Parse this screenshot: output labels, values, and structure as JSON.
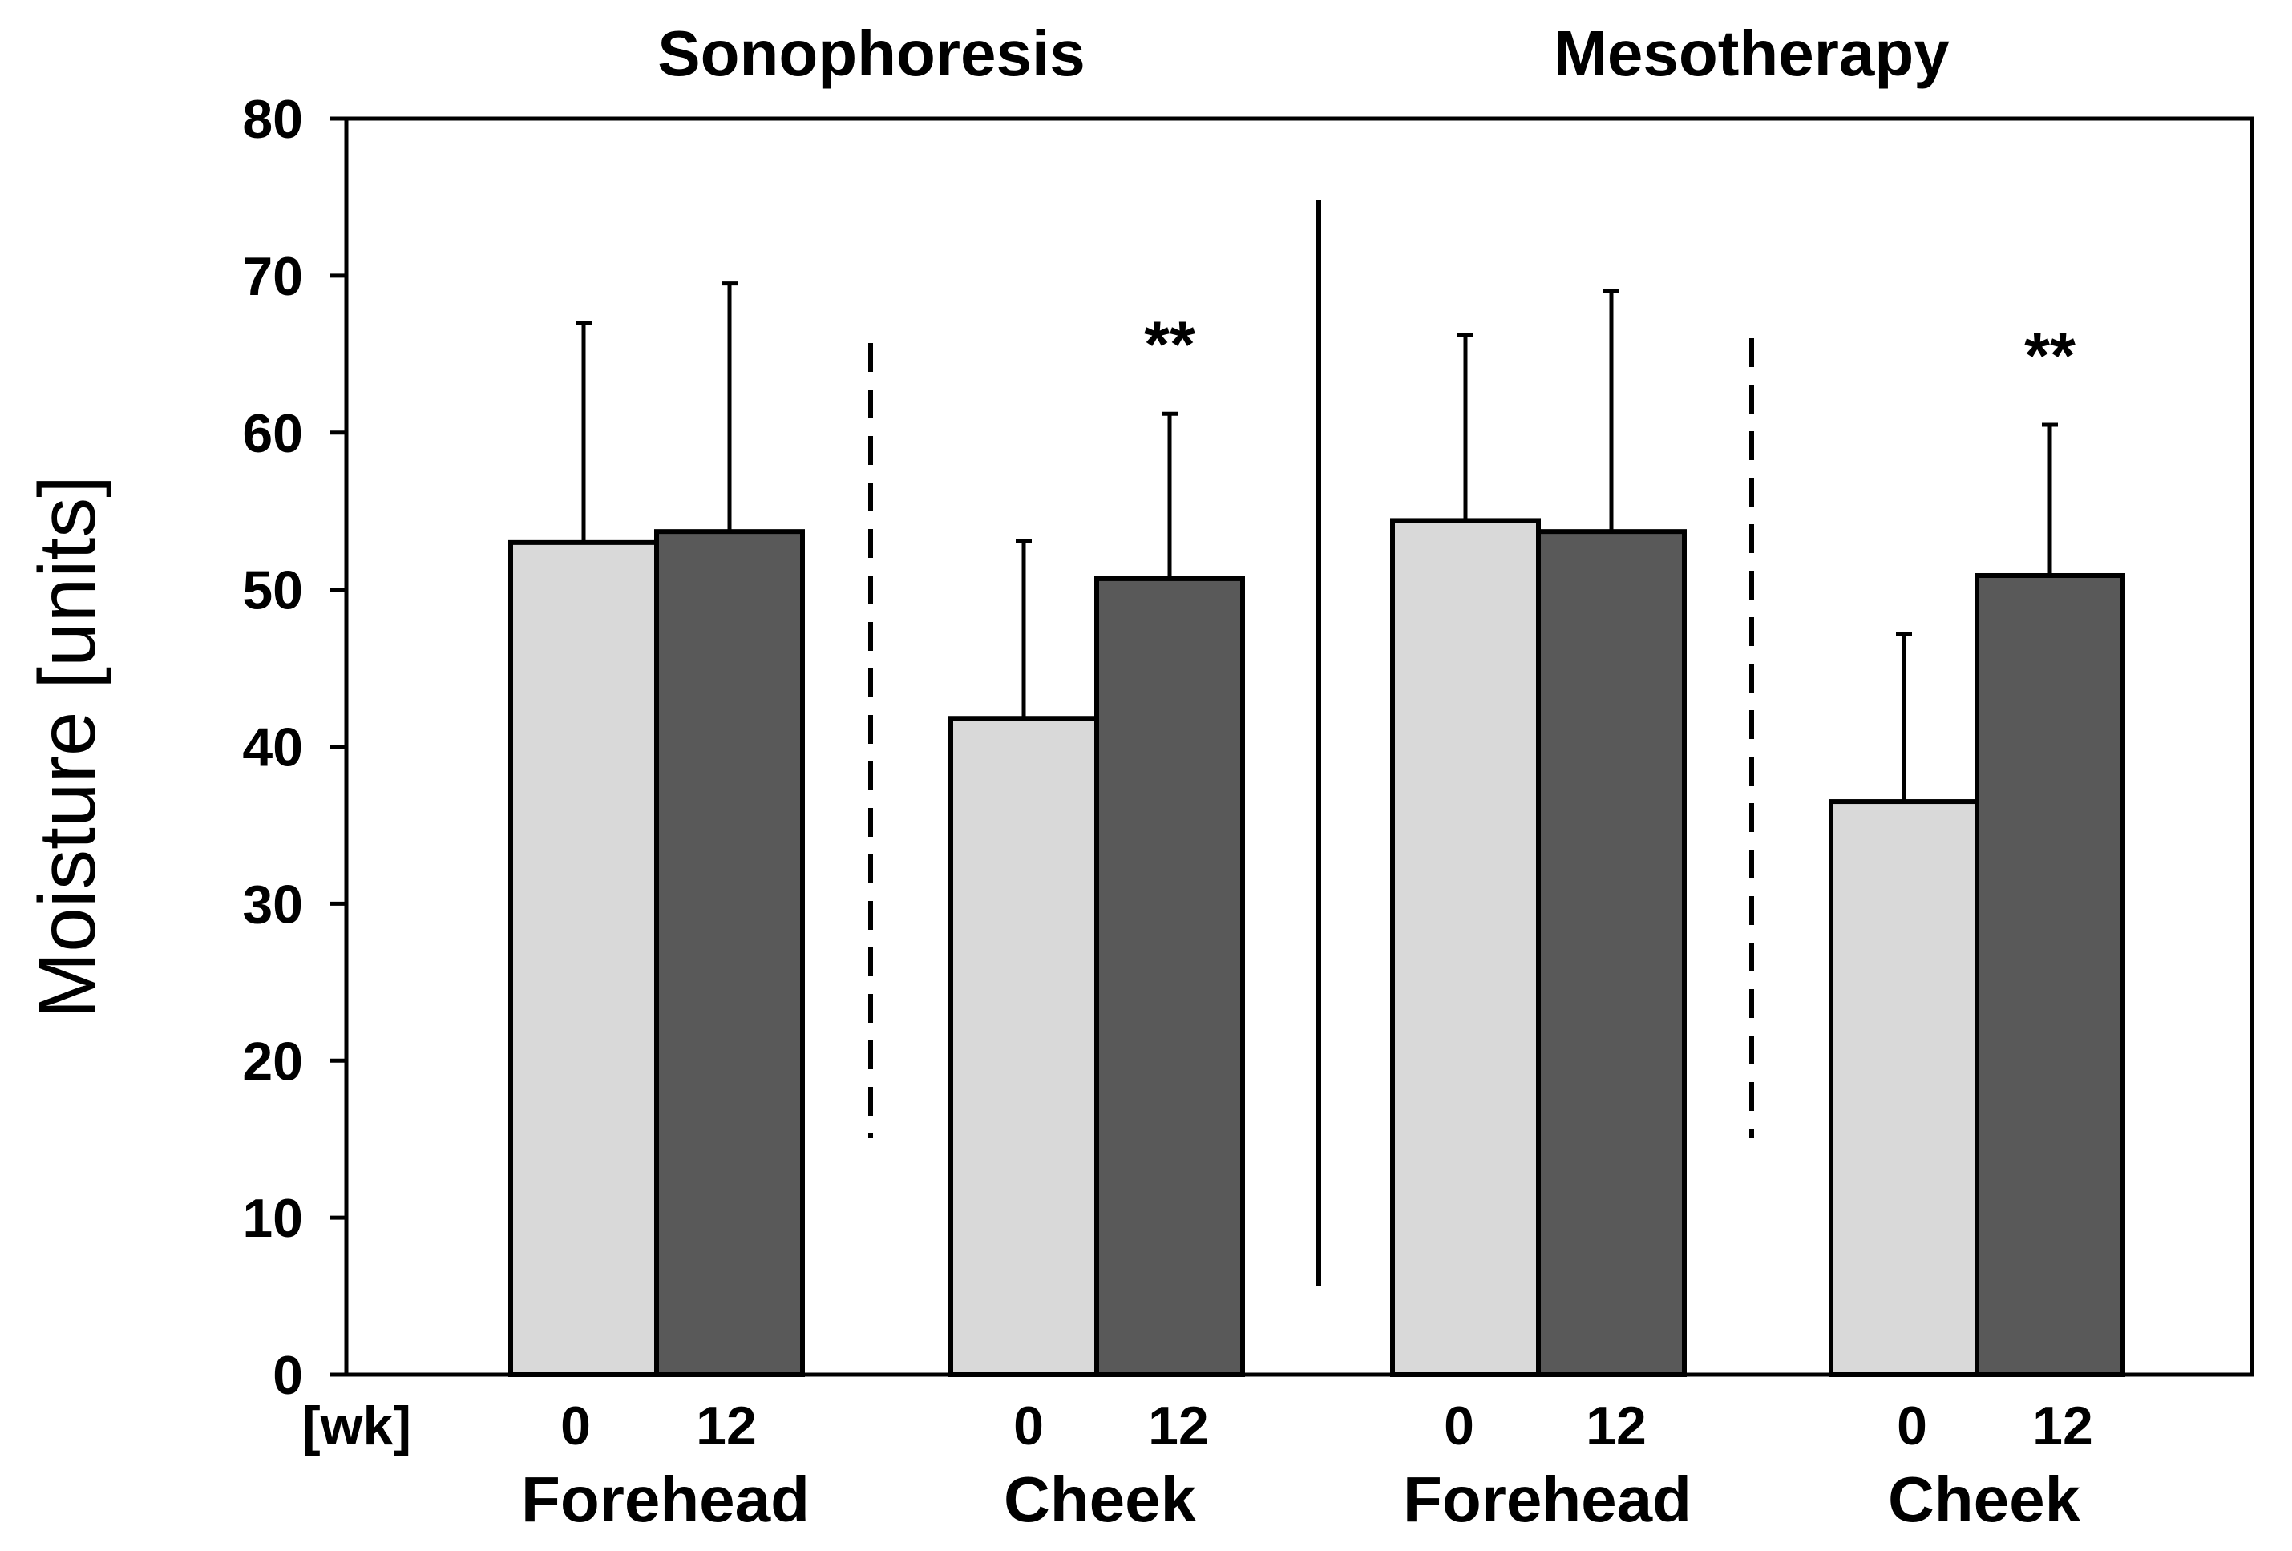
{
  "chart_data": {
    "type": "bar",
    "ylabel": "Moisture [units]",
    "ylim": [
      0,
      80
    ],
    "yticks": [
      0,
      10,
      20,
      30,
      40,
      50,
      60,
      70,
      80
    ],
    "x_unit_label": "[wk]",
    "colors": {
      "week0": "#d9d9d9",
      "week12": "#595959",
      "stroke": "#000000"
    },
    "groups": [
      {
        "title": "Sonophoresis",
        "sites": [
          {
            "site": "Forehead",
            "bars": [
              {
                "week": "0",
                "mean": 53,
                "sd": 14
              },
              {
                "week": "12",
                "mean": 53.7,
                "sd": 15.8
              }
            ],
            "significance": ""
          },
          {
            "site": "Cheek",
            "bars": [
              {
                "week": "0",
                "mean": 41.8,
                "sd": 11.3
              },
              {
                "week": "12",
                "mean": 50.7,
                "sd": 10.5
              }
            ],
            "significance": "**"
          }
        ]
      },
      {
        "title": "Mesotherapy",
        "sites": [
          {
            "site": "Forehead",
            "bars": [
              {
                "week": "0",
                "mean": 54.4,
                "sd": 11.8
              },
              {
                "week": "12",
                "mean": 53.7,
                "sd": 15.3
              }
            ],
            "significance": ""
          },
          {
            "site": "Cheek",
            "bars": [
              {
                "week": "0",
                "mean": 36.5,
                "sd": 10.7
              },
              {
                "week": "12",
                "mean": 50.9,
                "sd": 9.6
              }
            ],
            "significance": "**"
          }
        ]
      }
    ]
  }
}
